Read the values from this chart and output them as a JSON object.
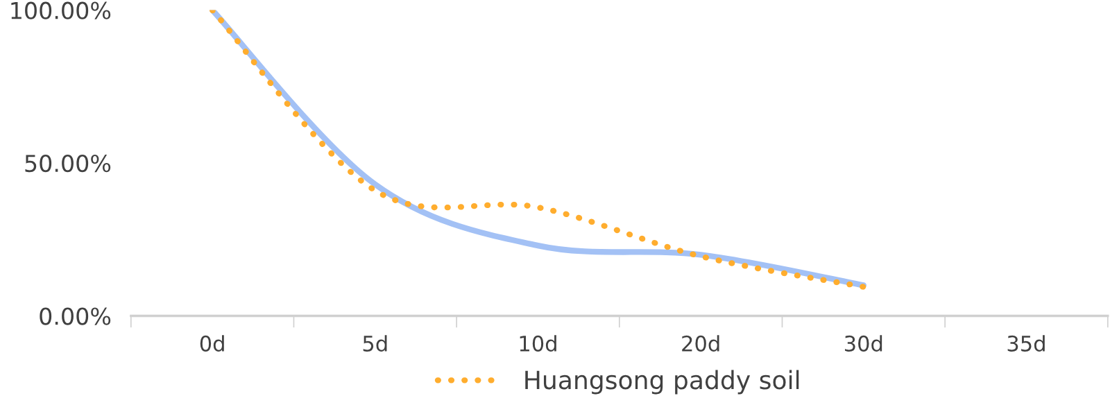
{
  "chart_data": {
    "type": "line",
    "categories": [
      "0d",
      "5d",
      "10d",
      "20d",
      "30d",
      "35d"
    ],
    "series": [
      {
        "color": "#a3c1f5",
        "values": [
          100,
          43,
          23,
          20,
          10,
          null
        ],
        "line_style": "solid"
      },
      {
        "name": "Huangsong paddy soil",
        "color": "#ffad2e",
        "values": [
          100,
          41,
          35.5,
          19.5,
          9.5,
          null
        ],
        "line_style": "dotted"
      }
    ],
    "ylim": [
      0,
      100
    ],
    "yticks": [
      {
        "value": 0,
        "label": "0.00%"
      },
      {
        "value": 50,
        "label": "50.00%"
      },
      {
        "value": 100,
        "label": "100.00%"
      }
    ],
    "grid": false,
    "legend": "bottom",
    "marker": "none"
  }
}
